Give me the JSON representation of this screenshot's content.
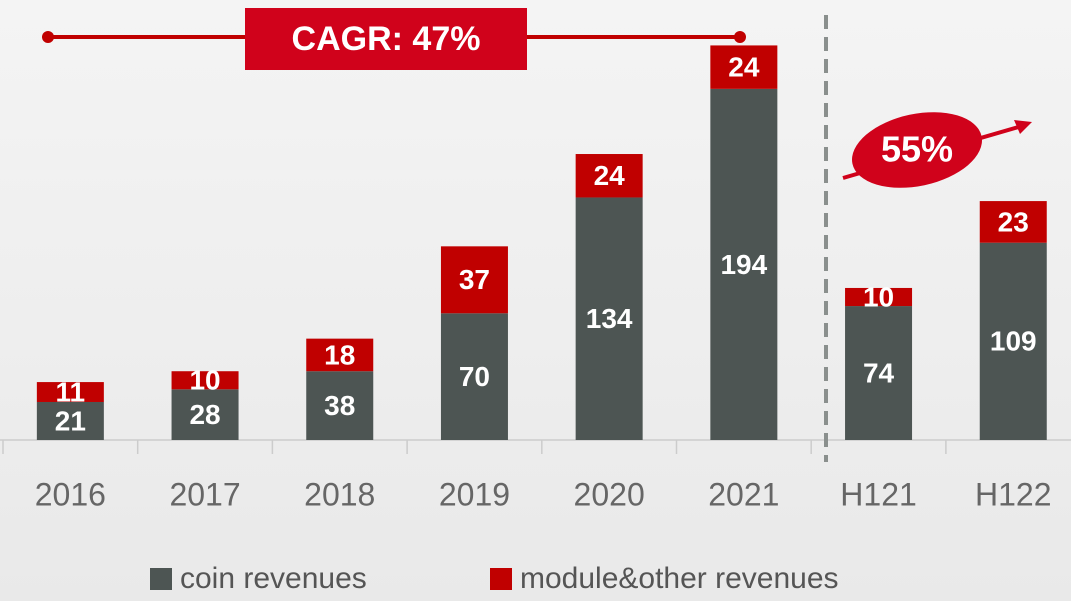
{
  "chart_data": {
    "type": "stacked_bar",
    "categories": [
      "2016",
      "2017",
      "2018",
      "2019",
      "2020",
      "2021",
      "H121",
      "H122"
    ],
    "series": [
      {
        "name": "coin revenues",
        "color": "#4d5553",
        "values": [
          21,
          28,
          38,
          70,
          134,
          194,
          74,
          109
        ]
      },
      {
        "name": "module&other revenues",
        "color": "#c00000",
        "values": [
          11,
          10,
          18,
          37,
          24,
          24,
          10,
          23
        ]
      }
    ],
    "annotations": [
      "CAGR: 47%",
      "55%"
    ],
    "legend": "bottom"
  }
}
